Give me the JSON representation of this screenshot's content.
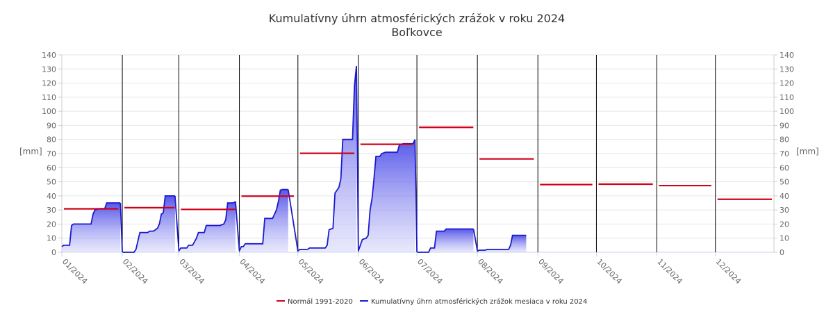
{
  "chart_data": {
    "type": "line",
    "title": "Kumulatívny úhrn atmosférických zrážok v roku 2024",
    "subtitle": "Boľkovce",
    "ylabel": "[mm]",
    "ylim": [
      0,
      140
    ],
    "yticks": [
      0,
      10,
      20,
      30,
      40,
      50,
      60,
      70,
      80,
      90,
      100,
      110,
      120,
      130,
      140
    ],
    "xlim": [
      1,
      366
    ],
    "grid": true,
    "legend_position": "bottom-center",
    "month_labels": [
      "01/2024",
      "02/2024",
      "03/2024",
      "04/2024",
      "05/2024",
      "06/2024",
      "07/2024",
      "08/2024",
      "09/2024",
      "10/2024",
      "11/2024",
      "12/2024"
    ],
    "month_start_days": [
      1,
      32,
      61,
      92,
      122,
      153,
      183,
      214,
      245,
      275,
      306,
      336
    ],
    "series": [
      {
        "name": "Normál 1991-2020",
        "color": "#d0021b",
        "style": "segments",
        "values": [
          30.8,
          31.6,
          30.4,
          39.8,
          70.2,
          76.6,
          88.6,
          66.2,
          48.0,
          48.3,
          47.3,
          37.6
        ]
      },
      {
        "name": "Kumulatívny úhrn atmosférických zrážok mesiaca v roku 2024",
        "color": "#1a1acc",
        "style": "area",
        "points": [
          [
            1,
            4
          ],
          [
            2,
            5
          ],
          [
            5,
            5
          ],
          [
            6,
            19
          ],
          [
            7,
            20
          ],
          [
            16,
            20
          ],
          [
            17,
            27
          ],
          [
            18,
            30
          ],
          [
            20,
            31
          ],
          [
            23,
            31
          ],
          [
            24,
            35
          ],
          [
            31,
            35
          ],
          [
            32,
            0
          ],
          [
            38,
            0
          ],
          [
            39,
            2
          ],
          [
            40,
            8
          ],
          [
            41,
            14
          ],
          [
            45,
            14
          ],
          [
            46,
            15
          ],
          [
            48,
            15
          ],
          [
            49,
            16
          ],
          [
            50,
            17
          ],
          [
            51,
            20
          ],
          [
            52,
            27
          ],
          [
            53,
            28
          ],
          [
            54,
            40
          ],
          [
            59,
            40
          ],
          [
            61,
            1
          ],
          [
            62,
            3
          ],
          [
            65,
            3
          ],
          [
            66,
            5
          ],
          [
            68,
            5
          ],
          [
            70,
            10
          ],
          [
            71,
            14
          ],
          [
            74,
            14
          ],
          [
            75,
            19
          ],
          [
            82,
            19
          ],
          [
            84,
            20
          ],
          [
            85,
            23
          ],
          [
            86,
            35
          ],
          [
            89,
            35
          ],
          [
            90,
            36
          ],
          [
            92,
            1
          ],
          [
            93,
            4
          ],
          [
            94,
            4
          ],
          [
            95,
            6
          ],
          [
            104,
            6
          ],
          [
            105,
            24
          ],
          [
            109,
            24
          ],
          [
            110,
            27
          ],
          [
            111,
            30
          ],
          [
            112,
            36
          ],
          [
            113,
            44
          ],
          [
            114,
            44.5
          ],
          [
            117,
            44.5
          ],
          [
            122,
            1
          ],
          [
            123,
            2
          ],
          [
            127,
            2
          ],
          [
            128,
            3
          ],
          [
            136,
            3
          ],
          [
            137,
            5
          ],
          [
            138,
            16
          ],
          [
            140,
            17
          ],
          [
            141,
            42
          ],
          [
            143,
            46
          ],
          [
            144,
            52
          ],
          [
            145,
            80
          ],
          [
            150,
            80
          ],
          [
            151,
            118
          ],
          [
            152,
            132
          ],
          [
            153,
            1
          ],
          [
            154,
            5
          ],
          [
            155,
            9
          ],
          [
            157,
            10
          ],
          [
            158,
            12
          ],
          [
            159,
            30
          ],
          [
            160,
            38
          ],
          [
            161,
            52
          ],
          [
            162,
            68
          ],
          [
            164,
            68
          ],
          [
            165,
            70
          ],
          [
            167,
            71
          ],
          [
            173,
            71
          ],
          [
            174,
            76
          ],
          [
            176,
            77
          ],
          [
            181,
            77
          ],
          [
            182,
            80
          ],
          [
            183,
            0
          ],
          [
            189,
            0
          ],
          [
            190,
            3
          ],
          [
            192,
            3
          ],
          [
            193,
            15
          ],
          [
            197,
            15
          ],
          [
            198,
            16.5
          ],
          [
            212,
            16.5
          ],
          [
            214,
            1
          ],
          [
            215,
            1.5
          ],
          [
            218,
            1.5
          ],
          [
            219,
            2
          ],
          [
            230,
            2
          ],
          [
            231,
            5
          ],
          [
            232,
            12
          ],
          [
            239,
            12
          ]
        ]
      }
    ]
  }
}
